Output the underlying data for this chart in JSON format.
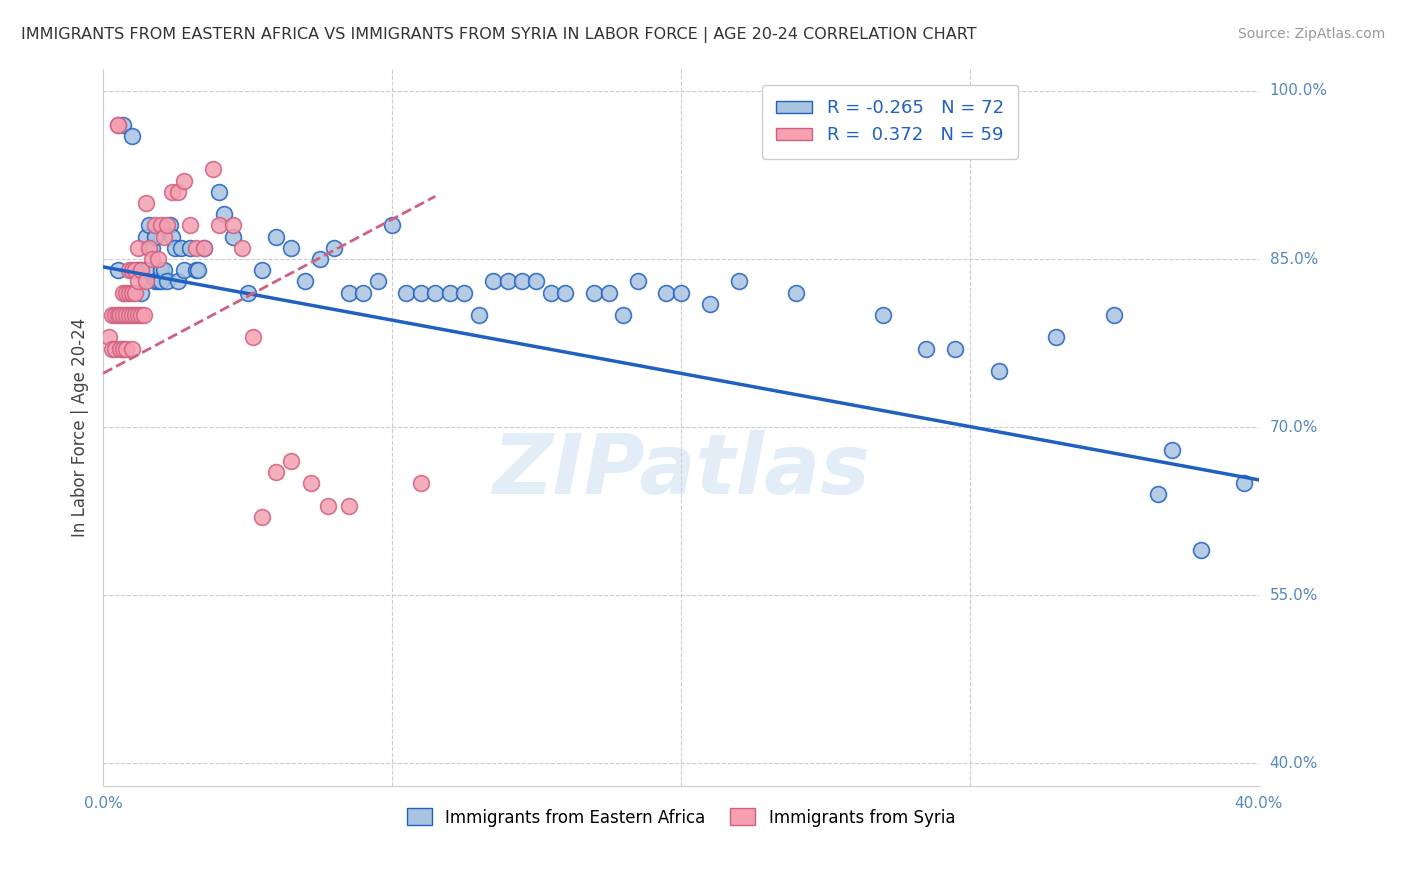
{
  "title": "IMMIGRANTS FROM EASTERN AFRICA VS IMMIGRANTS FROM SYRIA IN LABOR FORCE | AGE 20-24 CORRELATION CHART",
  "source": "Source: ZipAtlas.com",
  "ylabel": "In Labor Force | Age 20-24",
  "y_ticks": [
    40.0,
    55.0,
    70.0,
    85.0,
    100.0
  ],
  "x_range": [
    0.0,
    0.4
  ],
  "y_range": [
    0.38,
    1.02
  ],
  "legend_blue_r": "-0.265",
  "legend_blue_n": "72",
  "legend_pink_r": "0.372",
  "legend_pink_n": "59",
  "blue_color": "#a8c4e0",
  "blue_line_color": "#2060c0",
  "pink_color": "#f4a0b0",
  "pink_line_color": "#d06080",
  "watermark": "ZIPatlas",
  "blue_scatter_x": [
    0.005,
    0.007,
    0.01,
    0.012,
    0.013,
    0.013,
    0.015,
    0.015,
    0.016,
    0.017,
    0.018,
    0.018,
    0.019,
    0.02,
    0.02,
    0.021,
    0.022,
    0.023,
    0.024,
    0.025,
    0.026,
    0.027,
    0.028,
    0.03,
    0.032,
    0.033,
    0.035,
    0.04,
    0.042,
    0.045,
    0.05,
    0.055,
    0.06,
    0.065,
    0.07,
    0.075,
    0.08,
    0.085,
    0.09,
    0.095,
    0.1,
    0.105,
    0.11,
    0.115,
    0.12,
    0.125,
    0.13,
    0.135,
    0.14,
    0.145,
    0.15,
    0.155,
    0.16,
    0.17,
    0.175,
    0.18,
    0.185,
    0.195,
    0.2,
    0.21,
    0.22,
    0.24,
    0.27,
    0.285,
    0.295,
    0.31,
    0.33,
    0.35,
    0.365,
    0.37,
    0.38,
    0.395
  ],
  "blue_scatter_y": [
    0.84,
    0.97,
    0.96,
    0.84,
    0.84,
    0.82,
    0.87,
    0.84,
    0.88,
    0.86,
    0.87,
    0.83,
    0.83,
    0.84,
    0.83,
    0.84,
    0.83,
    0.88,
    0.87,
    0.86,
    0.83,
    0.86,
    0.84,
    0.86,
    0.84,
    0.84,
    0.86,
    0.91,
    0.89,
    0.87,
    0.82,
    0.84,
    0.87,
    0.86,
    0.83,
    0.85,
    0.86,
    0.82,
    0.82,
    0.83,
    0.88,
    0.82,
    0.82,
    0.82,
    0.82,
    0.82,
    0.8,
    0.83,
    0.83,
    0.83,
    0.83,
    0.82,
    0.82,
    0.82,
    0.82,
    0.8,
    0.83,
    0.82,
    0.82,
    0.81,
    0.83,
    0.82,
    0.8,
    0.77,
    0.77,
    0.75,
    0.78,
    0.8,
    0.64,
    0.68,
    0.59,
    0.65
  ],
  "pink_scatter_x": [
    0.002,
    0.003,
    0.003,
    0.004,
    0.004,
    0.005,
    0.005,
    0.005,
    0.006,
    0.006,
    0.007,
    0.007,
    0.007,
    0.008,
    0.008,
    0.008,
    0.009,
    0.009,
    0.009,
    0.01,
    0.01,
    0.01,
    0.01,
    0.011,
    0.011,
    0.011,
    0.012,
    0.012,
    0.012,
    0.013,
    0.013,
    0.014,
    0.015,
    0.015,
    0.016,
    0.017,
    0.018,
    0.019,
    0.02,
    0.021,
    0.022,
    0.024,
    0.026,
    0.028,
    0.03,
    0.032,
    0.035,
    0.038,
    0.04,
    0.045,
    0.048,
    0.052,
    0.055,
    0.06,
    0.065,
    0.072,
    0.078,
    0.085,
    0.11
  ],
  "pink_scatter_y": [
    0.78,
    0.8,
    0.77,
    0.8,
    0.77,
    0.97,
    0.97,
    0.8,
    0.8,
    0.77,
    0.82,
    0.8,
    0.77,
    0.82,
    0.8,
    0.77,
    0.84,
    0.82,
    0.8,
    0.84,
    0.82,
    0.8,
    0.77,
    0.84,
    0.82,
    0.8,
    0.86,
    0.83,
    0.8,
    0.84,
    0.8,
    0.8,
    0.9,
    0.83,
    0.86,
    0.85,
    0.88,
    0.85,
    0.88,
    0.87,
    0.88,
    0.91,
    0.91,
    0.92,
    0.88,
    0.86,
    0.86,
    0.93,
    0.88,
    0.88,
    0.86,
    0.78,
    0.62,
    0.66,
    0.67,
    0.65,
    0.63,
    0.63,
    0.65
  ],
  "blue_trend_x": [
    0.0,
    0.4
  ],
  "blue_trend_y": [
    0.843,
    0.653
  ],
  "pink_trend_x": [
    0.0,
    0.115
  ],
  "pink_trend_y": [
    0.748,
    0.906
  ],
  "background_color": "#ffffff",
  "grid_color": "#cccccc",
  "title_color": "#333333",
  "axis_label_color": "#5588bb"
}
